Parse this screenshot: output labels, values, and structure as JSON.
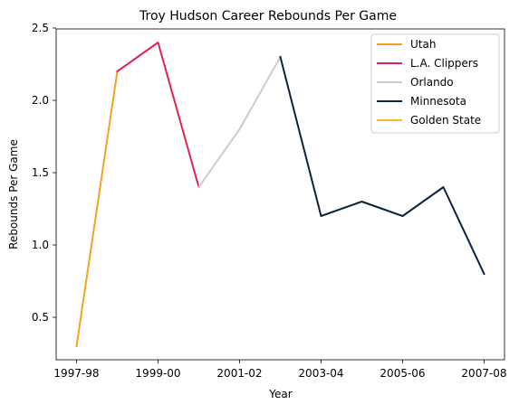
{
  "chart_data": {
    "type": "line",
    "title": "Troy Hudson Career Rebounds Per Game",
    "xlabel": "Year",
    "ylabel": "Rebounds Per Game",
    "x_ticks": [
      "1997-98",
      "1999-00",
      "2001-02",
      "2003-04",
      "2005-06",
      "2007-08"
    ],
    "y_ticks": [
      "0.5",
      "1.0",
      "1.5",
      "2.0",
      "2.5"
    ],
    "ylim": [
      0.2,
      2.5
    ],
    "grid": false,
    "legend_position": "top-right",
    "series": [
      {
        "name": "Utah",
        "color": "#F4A21F",
        "points": [
          {
            "x": "1997-98",
            "y": 0.3
          },
          {
            "x": "1998-99",
            "y": 2.2
          }
        ]
      },
      {
        "name": "L.A. Clippers",
        "color": "#E0234E",
        "points": [
          {
            "x": "1998-99",
            "y": 2.2
          },
          {
            "x": "1999-00",
            "y": 2.4
          },
          {
            "x": "2000-01",
            "y": 1.4
          }
        ]
      },
      {
        "name": "Orlando",
        "color": "#C4CED4",
        "points": [
          {
            "x": "2000-01",
            "y": 1.4
          },
          {
            "x": "2001-02",
            "y": 1.8
          },
          {
            "x": "2002-03",
            "y": 2.3
          }
        ]
      },
      {
        "name": "Minnesota",
        "color": "#0C2340",
        "points": [
          {
            "x": "2002-03",
            "y": 2.3
          },
          {
            "x": "2003-04",
            "y": 1.2
          },
          {
            "x": "2004-05",
            "y": 1.3
          },
          {
            "x": "2005-06",
            "y": 1.2
          },
          {
            "x": "2006-07",
            "y": 1.4
          },
          {
            "x": "2007-08",
            "y": 0.8
          }
        ]
      },
      {
        "name": "Golden State",
        "color": "#FDB927",
        "points": []
      }
    ]
  }
}
